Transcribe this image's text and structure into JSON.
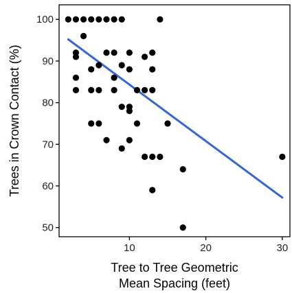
{
  "chart_data": {
    "type": "scatter",
    "title": "",
    "xlabel_lines": [
      "Tree to Tree Geometric",
      "Mean Spacing (feet)"
    ],
    "ylabel": "Trees in Crown Contact (%)",
    "xlim": [
      0.8,
      31
    ],
    "ylim": [
      47.8,
      103.5
    ],
    "x_ticks": [
      10,
      20,
      30
    ],
    "y_ticks": [
      50,
      60,
      70,
      80,
      90,
      100
    ],
    "grid": false,
    "legend": "none",
    "colors": {
      "points": "#000000",
      "trend": "#3366dd"
    },
    "points": [
      {
        "x": 2,
        "y": 100
      },
      {
        "x": 3,
        "y": 100
      },
      {
        "x": 4,
        "y": 100
      },
      {
        "x": 5,
        "y": 100
      },
      {
        "x": 6,
        "y": 100
      },
      {
        "x": 7,
        "y": 100
      },
      {
        "x": 8,
        "y": 100
      },
      {
        "x": 9,
        "y": 100
      },
      {
        "x": 14,
        "y": 100
      },
      {
        "x": 4,
        "y": 96
      },
      {
        "x": 3,
        "y": 92
      },
      {
        "x": 3,
        "y": 91
      },
      {
        "x": 7,
        "y": 92
      },
      {
        "x": 8,
        "y": 92
      },
      {
        "x": 10,
        "y": 92
      },
      {
        "x": 13,
        "y": 92
      },
      {
        "x": 12,
        "y": 91
      },
      {
        "x": 6,
        "y": 89
      },
      {
        "x": 9,
        "y": 89
      },
      {
        "x": 5,
        "y": 88
      },
      {
        "x": 10,
        "y": 88
      },
      {
        "x": 13,
        "y": 88
      },
      {
        "x": 3,
        "y": 86
      },
      {
        "x": 8,
        "y": 86
      },
      {
        "x": 3,
        "y": 83
      },
      {
        "x": 5,
        "y": 83
      },
      {
        "x": 6,
        "y": 83
      },
      {
        "x": 8,
        "y": 83
      },
      {
        "x": 11,
        "y": 83
      },
      {
        "x": 12,
        "y": 83
      },
      {
        "x": 13,
        "y": 83
      },
      {
        "x": 9,
        "y": 79
      },
      {
        "x": 10,
        "y": 79
      },
      {
        "x": 10,
        "y": 78
      },
      {
        "x": 5,
        "y": 75
      },
      {
        "x": 6,
        "y": 75
      },
      {
        "x": 11,
        "y": 75
      },
      {
        "x": 15,
        "y": 75
      },
      {
        "x": 7,
        "y": 71
      },
      {
        "x": 10,
        "y": 71
      },
      {
        "x": 9,
        "y": 69
      },
      {
        "x": 12,
        "y": 67
      },
      {
        "x": 13,
        "y": 67
      },
      {
        "x": 14,
        "y": 67
      },
      {
        "x": 30,
        "y": 67
      },
      {
        "x": 17,
        "y": 64
      },
      {
        "x": 13,
        "y": 59
      },
      {
        "x": 17,
        "y": 50
      }
    ],
    "trend_line": {
      "x": [
        2,
        30
      ],
      "y": [
        95.2,
        57.2
      ]
    }
  }
}
